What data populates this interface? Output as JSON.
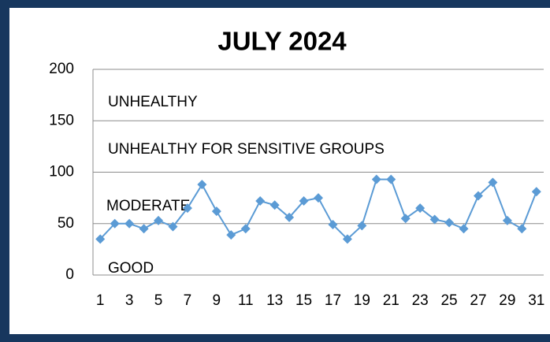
{
  "chart_data": {
    "type": "line",
    "title": "JULY 2024",
    "categories": [
      "1",
      null,
      "3",
      null,
      "5",
      null,
      "7",
      null,
      "9",
      null,
      "11",
      null,
      "13",
      null,
      "15",
      null,
      "17",
      null,
      "19",
      null,
      "21",
      null,
      "23",
      null,
      "25",
      null,
      "27",
      null,
      "29",
      null,
      "31"
    ],
    "series": [
      {
        "color": "#5b9bd5",
        "values": [
          35,
          50,
          50,
          45,
          53,
          47,
          65,
          88,
          62,
          39,
          45,
          72,
          68,
          56,
          72,
          75,
          49,
          35,
          48,
          93,
          93,
          55,
          65,
          54,
          51,
          45,
          77,
          90,
          53,
          45,
          81
        ]
      }
    ],
    "ylim": [
      0,
      200
    ],
    "yticks": [
      0,
      50,
      100,
      150,
      200
    ],
    "grid": true,
    "annotations": [
      "UNHEALTHY",
      "UNHEALTHY FOR SENSITIVE GROUPS",
      "MODERATE",
      "GOOD"
    ]
  }
}
